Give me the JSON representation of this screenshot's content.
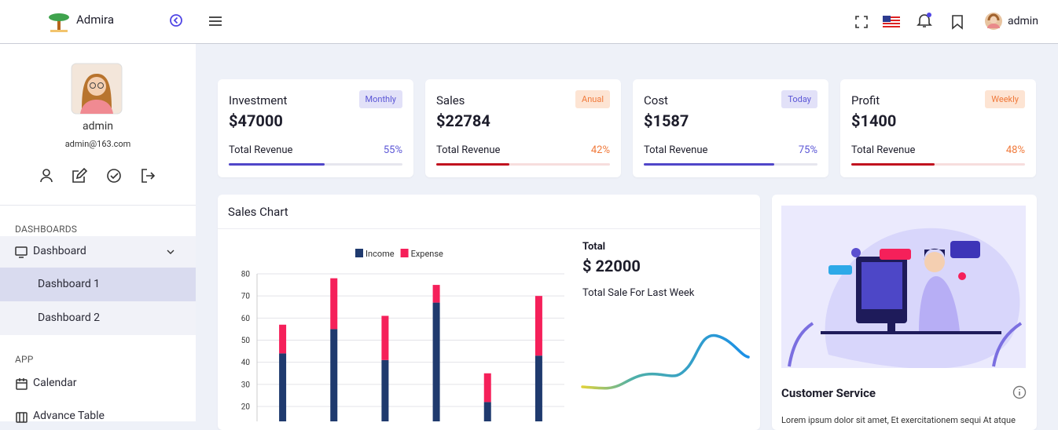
{
  "header": {
    "brand": "Admira",
    "user": "admin"
  },
  "sidebar": {
    "profile": {
      "name": "admin",
      "email": "admin@163.com"
    },
    "sections": [
      {
        "title": "DASHBOARDS",
        "items": [
          "Dashboard",
          "Dashboard 1",
          "Dashboard 2"
        ]
      },
      {
        "title": "APP",
        "items": [
          "Calendar",
          "Advance Table"
        ]
      }
    ]
  },
  "cards": [
    {
      "title": "Investment",
      "badge": "Monthly",
      "value": "$47000",
      "caption": "Total Revenue",
      "progress": 55,
      "progress_label": "55%"
    },
    {
      "title": "Sales",
      "badge": "Anual",
      "value": "$22784",
      "caption": "Total Revenue",
      "progress": 42,
      "progress_label": "42%"
    },
    {
      "title": "Cost",
      "badge": "Today",
      "value": "$1587",
      "caption": "Total Revenue",
      "progress": 75,
      "progress_label": "75%"
    },
    {
      "title": "Profit",
      "badge": "Weekly",
      "value": "$1400",
      "caption": "Total Revenue",
      "progress": 48,
      "progress_label": "48%"
    }
  ],
  "chart_data": {
    "type": "stacked_bar",
    "title": "Sales Chart",
    "categories": [
      null,
      null,
      null,
      null,
      null,
      null
    ],
    "series": [
      {
        "name": "Income",
        "color": "#1f3a6e",
        "values": [
          44,
          55,
          41,
          67,
          22,
          43
        ]
      },
      {
        "name": "Expense",
        "color": "#f5205a",
        "values": [
          13,
          23,
          20,
          8,
          13,
          27
        ]
      }
    ],
    "ylim": [
      0,
      80
    ],
    "yticks": [
      20,
      30,
      40,
      50,
      60,
      70,
      80
    ],
    "grid": true
  },
  "summary": {
    "label": "Total",
    "value": "$ 22000",
    "caption": "Total Sale For Last Week"
  },
  "service": {
    "title": "Customer Service",
    "text": "Lorem ipsum dolor sit amet, Et exercitationem sequi At atque"
  }
}
